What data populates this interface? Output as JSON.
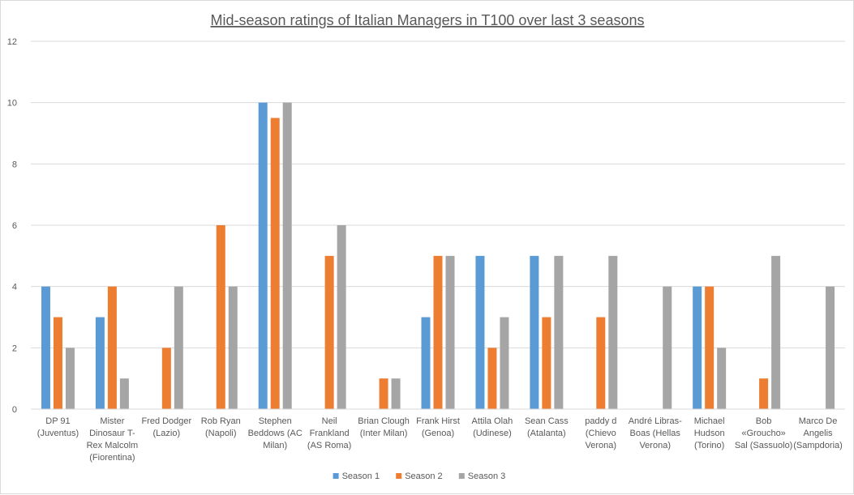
{
  "chart_data": {
    "type": "bar",
    "title": "Mid-season ratings of Italian Managers in T100 over last 3 seasons",
    "xlabel": "",
    "ylabel": "",
    "ylim": [
      0,
      12
    ],
    "yticks": [
      0,
      2,
      4,
      6,
      8,
      10,
      12
    ],
    "grid": true,
    "legend_position": "bottom",
    "categories": [
      [
        "DP 91",
        "(Juventus)"
      ],
      [
        "Mister",
        "Dinosaur T-",
        "Rex Malcolm",
        "(Fiorentina)"
      ],
      [
        "Fred Dodger",
        "(Lazio)"
      ],
      [
        "Rob Ryan",
        "(Napoli)"
      ],
      [
        "Stephen",
        "Beddows (AC",
        "Milan)"
      ],
      [
        "Neil",
        "Frankland",
        "(AS Roma)"
      ],
      [
        "Brian Clough",
        "(Inter Milan)"
      ],
      [
        "Frank Hirst",
        "(Genoa)"
      ],
      [
        "Attila Olah",
        "(Udinese)"
      ],
      [
        "Sean Cass",
        "(Atalanta)"
      ],
      [
        "paddy d",
        "(Chievo",
        "Verona)"
      ],
      [
        "André Libras-",
        "Boas (Hellas",
        "Verona)"
      ],
      [
        "Michael",
        "Hudson",
        "(Torino)"
      ],
      [
        "Bob",
        "«Groucho»",
        "Sal (Sassuolo)"
      ],
      [
        "Marco De",
        "Angelis",
        "(Sampdoria)"
      ]
    ],
    "series": [
      {
        "name": "Season 1",
        "color": "#5B9BD5",
        "values": [
          4,
          3,
          null,
          null,
          10,
          null,
          null,
          3,
          5,
          5,
          null,
          null,
          4,
          null,
          null
        ]
      },
      {
        "name": "Season 2",
        "color": "#ED7D31",
        "values": [
          3,
          4,
          2,
          6,
          9.5,
          5,
          1,
          5,
          2,
          3,
          3,
          null,
          4,
          1,
          null
        ]
      },
      {
        "name": "Season 3",
        "color": "#A5A5A5",
        "values": [
          2,
          1,
          4,
          4,
          10,
          6,
          1,
          5,
          3,
          5,
          5,
          4,
          2,
          5,
          4
        ]
      }
    ]
  }
}
